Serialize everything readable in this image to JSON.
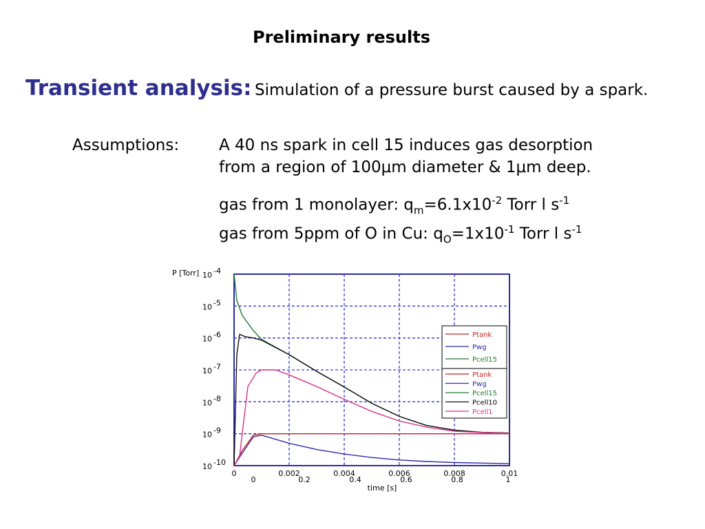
{
  "slide": {
    "title": "Preliminary results",
    "section_label": "Transient analysis:",
    "section_text": "Simulation of a pressure burst caused by a spark.",
    "assumptions_label": "Assumptions:",
    "assumption_line1": "A 40 ns spark in cell 15 induces gas desorption",
    "assumption_line2": "from a region of 100μm diameter & 1μm deep.",
    "gas1": {
      "prefix": "gas from 1 monolayer: q",
      "sub": "m",
      "mid": "=6.1x10",
      "exp": "-2",
      "unit": " Torr l s",
      "unit_exp": "-1"
    },
    "gas2": {
      "prefix": "gas from 5ppm of O in Cu: q",
      "sub": "O",
      "mid": "=1x10",
      "exp": "-1",
      "unit": " Torr l s",
      "unit_exp": "-1"
    }
  },
  "chart_data": {
    "type": "line",
    "ylabel": "P [Torr]",
    "xlabel": "time [s]",
    "y_scale": "log",
    "ylim": [
      1e-10,
      0.0001
    ],
    "xlim": [
      0,
      0.01
    ],
    "y_ticks": [
      "10",
      "10",
      "10",
      "10",
      "10",
      "10",
      "10"
    ],
    "y_tick_exps": [
      "-4",
      "-5",
      "-6",
      "-7",
      "-8",
      "-9",
      "-10"
    ],
    "y_tick_values": [
      -4,
      -5,
      -6,
      -7,
      -8,
      -9,
      -10
    ],
    "x_ticks": [
      "0",
      "0.002",
      "0.004",
      "0.006",
      "0.008",
      "0.01"
    ],
    "x_tick_values": [
      0,
      0.002,
      0.004,
      0.006,
      0.008,
      0.01
    ],
    "x_ticks_secondary": [
      "0",
      "0.2",
      "0.4",
      "0.6",
      "0.8",
      "1"
    ],
    "grid": true,
    "legend_position": "right",
    "legend_top": [
      "Ptank",
      "Pwg",
      "Pcell15"
    ],
    "series": [
      {
        "name": "Ptank",
        "color": "#cc2222",
        "points": [
          [
            0,
            1e-10
          ],
          [
            0.0003,
            3e-10
          ],
          [
            0.0007,
            9e-10
          ],
          [
            0.001,
            1e-09
          ],
          [
            0.002,
            1e-09
          ],
          [
            0.004,
            1e-09
          ],
          [
            0.006,
            1e-09
          ],
          [
            0.008,
            1e-09
          ],
          [
            0.01,
            1e-09
          ]
        ]
      },
      {
        "name": "Pwg",
        "color": "#2a2aa8",
        "points": [
          [
            0,
            1e-10
          ],
          [
            0.0003,
            2.5e-10
          ],
          [
            0.0007,
            8e-10
          ],
          [
            0.001,
            9e-10
          ],
          [
            0.002,
            5e-10
          ],
          [
            0.003,
            3.2e-10
          ],
          [
            0.004,
            2.3e-10
          ],
          [
            0.005,
            1.8e-10
          ],
          [
            0.006,
            1.5e-10
          ],
          [
            0.007,
            1.35e-10
          ],
          [
            0.008,
            1.25e-10
          ],
          [
            0.009,
            1.2e-10
          ],
          [
            0.01,
            1.15e-10
          ]
        ]
      },
      {
        "name": "Pcell15",
        "color": "#1f7a2e",
        "points": [
          [
            0,
            0.0001
          ],
          [
            0.0001,
            1.5e-05
          ],
          [
            0.0003,
            5e-06
          ],
          [
            0.0007,
            1.7e-06
          ],
          [
            0.001,
            9e-07
          ],
          [
            0.002,
            3e-07
          ],
          [
            0.003,
            9e-08
          ],
          [
            0.004,
            2.9e-08
          ],
          [
            0.005,
            9e-09
          ],
          [
            0.006,
            3.5e-09
          ],
          [
            0.007,
            1.8e-09
          ],
          [
            0.008,
            1.3e-09
          ],
          [
            0.009,
            1.1e-09
          ],
          [
            0.01,
            1.05e-09
          ]
        ]
      },
      {
        "name": "Pcell10",
        "color": "#111111",
        "points": [
          [
            0,
            1e-10
          ],
          [
            0.0001,
            3e-07
          ],
          [
            0.0002,
            1.3e-06
          ],
          [
            0.0004,
            1.1e-06
          ],
          [
            0.0007,
            1e-06
          ],
          [
            0.001,
            8.5e-07
          ],
          [
            0.002,
            3e-07
          ],
          [
            0.003,
            9e-08
          ],
          [
            0.004,
            2.9e-08
          ],
          [
            0.005,
            9e-09
          ],
          [
            0.006,
            3.5e-09
          ],
          [
            0.007,
            1.8e-09
          ],
          [
            0.008,
            1.3e-09
          ],
          [
            0.009,
            1.1e-09
          ],
          [
            0.01,
            1.05e-09
          ]
        ]
      },
      {
        "name": "Pcell1",
        "color": "#d6338a",
        "points": [
          [
            0,
            1e-10
          ],
          [
            0.0002,
            2e-10
          ],
          [
            0.0005,
            3e-08
          ],
          [
            0.0008,
            8e-08
          ],
          [
            0.001,
            1e-07
          ],
          [
            0.0015,
            1e-07
          ],
          [
            0.002,
            7e-08
          ],
          [
            0.003,
            3e-08
          ],
          [
            0.004,
            1.2e-08
          ],
          [
            0.005,
            5e-09
          ],
          [
            0.006,
            2.5e-09
          ],
          [
            0.007,
            1.6e-09
          ],
          [
            0.008,
            1.2e-09
          ],
          [
            0.009,
            1.08e-09
          ],
          [
            0.01,
            1.03e-09
          ]
        ]
      }
    ]
  }
}
